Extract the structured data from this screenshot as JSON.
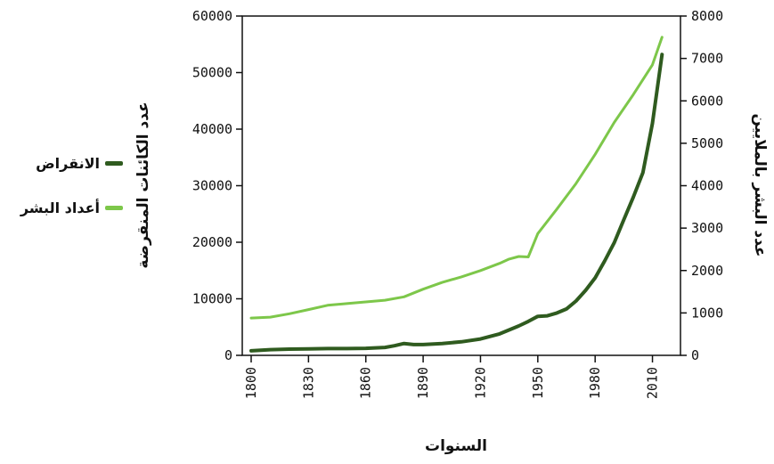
{
  "chart_data": {
    "type": "line",
    "title": "",
    "xlabel": "السنوات",
    "ylabel_left": "عدد الكائنات المنقرضة",
    "ylabel_right": "عدد البشر بالملايين",
    "xlim": [
      1800,
      2020
    ],
    "ylim_left": [
      0,
      60000
    ],
    "ylim_right": [
      0,
      8000
    ],
    "x_ticks": [
      "1800",
      "1830",
      "1860",
      "1890",
      "1920",
      "1950",
      "1980",
      "2010"
    ],
    "y_ticks_left": [
      "0",
      "10000",
      "20000",
      "30000",
      "40000",
      "50000",
      "60000"
    ],
    "y_ticks_right": [
      "0",
      "1000",
      "2000",
      "3000",
      "4000",
      "5000",
      "6000",
      "7000",
      "8000"
    ],
    "grid": false,
    "legend_position": "left",
    "series": [
      {
        "name": "الانقراض",
        "axis": "left",
        "color": "#2f5b1f",
        "x": [
          1800,
          1810,
          1820,
          1830,
          1840,
          1850,
          1860,
          1870,
          1875,
          1880,
          1885,
          1890,
          1900,
          1910,
          1920,
          1930,
          1940,
          1945,
          1950,
          1955,
          1960,
          1965,
          1970,
          1975,
          1980,
          1985,
          1990,
          1995,
          2000,
          2005,
          2010,
          2015
        ],
        "values": [
          800,
          1000,
          1100,
          1150,
          1200,
          1200,
          1250,
          1400,
          1700,
          2100,
          1900,
          1900,
          2100,
          2400,
          2900,
          3800,
          5200,
          6000,
          6900,
          7000,
          7500,
          8200,
          9600,
          11500,
          13700,
          16700,
          19900,
          24000,
          28000,
          32300,
          41000,
          53200
        ]
      },
      {
        "name": "أعداد البشر",
        "axis": "right",
        "color": "#7dc74a",
        "x": [
          1800,
          1810,
          1820,
          1830,
          1840,
          1850,
          1860,
          1870,
          1880,
          1890,
          1900,
          1910,
          1920,
          1930,
          1935,
          1940,
          1945,
          1950,
          1960,
          1970,
          1980,
          1990,
          2000,
          2010,
          2015
        ],
        "values": [
          880,
          900,
          980,
          1080,
          1180,
          1220,
          1260,
          1300,
          1380,
          1560,
          1720,
          1850,
          2000,
          2170,
          2270,
          2330,
          2320,
          2870,
          3450,
          4050,
          4740,
          5490,
          6150,
          6850,
          7500
        ]
      }
    ]
  }
}
